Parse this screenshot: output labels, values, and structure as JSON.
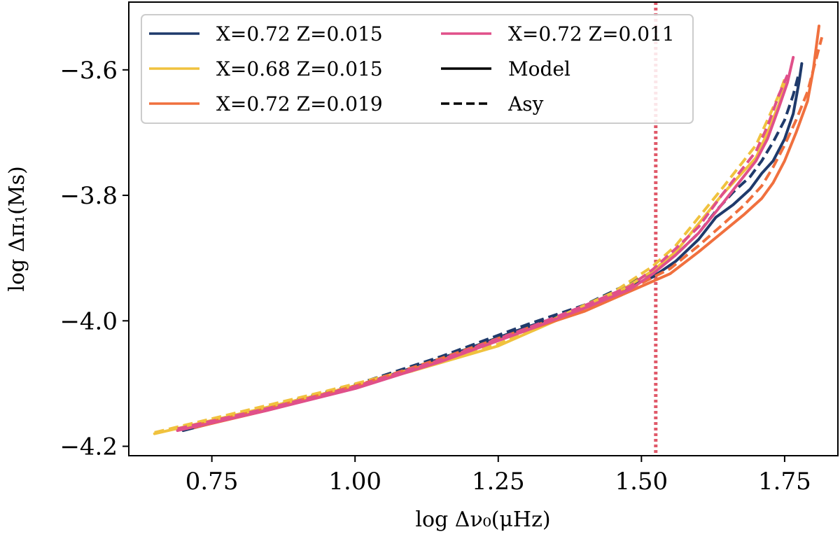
{
  "chart_data": {
    "type": "line",
    "xlabel": "log Δν₀(μHz)",
    "ylabel": "log Δπ₁(Ms)",
    "xlim": [
      0.605,
      1.843
    ],
    "ylim": [
      -4.215,
      -3.492
    ],
    "xticks": [
      0.75,
      1.0,
      1.25,
      1.5,
      1.75
    ],
    "xtick_labels": [
      "0.75",
      "1.00",
      "1.25",
      "1.50",
      "1.75"
    ],
    "yticks": [
      -4.2,
      -4.0,
      -3.8,
      -3.6
    ],
    "ytick_labels": [
      "−4.2",
      "−4.0",
      "−3.8",
      "−3.6"
    ],
    "grid": false,
    "legend_placement": "upper-left",
    "vline": {
      "x": 1.525,
      "color": "#e05a6a",
      "style": "dotted"
    },
    "series": [
      {
        "name": "X=0.72 Z=0.015",
        "color": "#1f3a6b",
        "model": [
          [
            0.7,
            -4.175
          ],
          [
            0.85,
            -4.14
          ],
          [
            1.0,
            -4.105
          ],
          [
            1.15,
            -4.06
          ],
          [
            1.3,
            -4.01
          ],
          [
            1.4,
            -3.98
          ],
          [
            1.48,
            -3.945
          ],
          [
            1.52,
            -3.93
          ],
          [
            1.56,
            -3.905
          ],
          [
            1.6,
            -3.87
          ],
          [
            1.63,
            -3.835
          ],
          [
            1.66,
            -3.815
          ],
          [
            1.69,
            -3.79
          ],
          [
            1.71,
            -3.765
          ],
          [
            1.73,
            -3.745
          ],
          [
            1.75,
            -3.71
          ],
          [
            1.765,
            -3.67
          ],
          [
            1.775,
            -3.62
          ],
          [
            1.78,
            -3.59
          ]
        ],
        "asy": [
          [
            0.7,
            -4.172
          ],
          [
            0.85,
            -4.137
          ],
          [
            1.0,
            -4.102
          ],
          [
            1.15,
            -4.057
          ],
          [
            1.3,
            -4.006
          ],
          [
            1.4,
            -3.975
          ],
          [
            1.48,
            -3.94
          ],
          [
            1.52,
            -3.922
          ],
          [
            1.56,
            -3.895
          ],
          [
            1.6,
            -3.86
          ],
          [
            1.63,
            -3.825
          ],
          [
            1.66,
            -3.795
          ],
          [
            1.69,
            -3.77
          ],
          [
            1.71,
            -3.745
          ],
          [
            1.73,
            -3.715
          ],
          [
            1.75,
            -3.68
          ],
          [
            1.765,
            -3.64
          ],
          [
            1.775,
            -3.605
          ]
        ]
      },
      {
        "name": "X=0.68 Z=0.015",
        "color": "#f0c23e",
        "model": [
          [
            0.65,
            -4.18
          ],
          [
            0.8,
            -4.148
          ],
          [
            0.95,
            -4.115
          ],
          [
            1.1,
            -4.08
          ],
          [
            1.25,
            -4.04
          ],
          [
            1.35,
            -4.0
          ],
          [
            1.45,
            -3.96
          ],
          [
            1.52,
            -3.92
          ],
          [
            1.56,
            -3.89
          ],
          [
            1.6,
            -3.845
          ],
          [
            1.64,
            -3.8
          ],
          [
            1.67,
            -3.77
          ],
          [
            1.7,
            -3.74
          ],
          [
            1.72,
            -3.7
          ],
          [
            1.74,
            -3.655
          ],
          [
            1.75,
            -3.62
          ]
        ],
        "asy": [
          [
            0.65,
            -4.178
          ],
          [
            0.8,
            -4.145
          ],
          [
            0.95,
            -4.112
          ],
          [
            1.1,
            -4.077
          ],
          [
            1.25,
            -4.037
          ],
          [
            1.35,
            -3.996
          ],
          [
            1.45,
            -3.955
          ],
          [
            1.52,
            -3.913
          ],
          [
            1.56,
            -3.88
          ],
          [
            1.6,
            -3.835
          ],
          [
            1.64,
            -3.79
          ],
          [
            1.67,
            -3.755
          ],
          [
            1.7,
            -3.72
          ],
          [
            1.72,
            -3.68
          ],
          [
            1.74,
            -3.64
          ],
          [
            1.75,
            -3.615
          ]
        ]
      },
      {
        "name": "X=0.72 Z=0.019",
        "color": "#f0703e",
        "model": [
          [
            0.72,
            -4.17
          ],
          [
            0.85,
            -4.142
          ],
          [
            1.0,
            -4.107
          ],
          [
            1.15,
            -4.063
          ],
          [
            1.3,
            -4.015
          ],
          [
            1.4,
            -3.985
          ],
          [
            1.5,
            -3.945
          ],
          [
            1.55,
            -3.925
          ],
          [
            1.6,
            -3.89
          ],
          [
            1.64,
            -3.86
          ],
          [
            1.68,
            -3.83
          ],
          [
            1.71,
            -3.805
          ],
          [
            1.73,
            -3.78
          ],
          [
            1.75,
            -3.745
          ],
          [
            1.77,
            -3.7
          ],
          [
            1.79,
            -3.65
          ],
          [
            1.8,
            -3.6
          ],
          [
            1.81,
            -3.53
          ]
        ],
        "asy": [
          [
            0.72,
            -4.167
          ],
          [
            0.85,
            -4.139
          ],
          [
            1.0,
            -4.104
          ],
          [
            1.15,
            -4.06
          ],
          [
            1.3,
            -4.012
          ],
          [
            1.4,
            -3.981
          ],
          [
            1.5,
            -3.94
          ],
          [
            1.55,
            -3.917
          ],
          [
            1.6,
            -3.88
          ],
          [
            1.64,
            -3.848
          ],
          [
            1.68,
            -3.815
          ],
          [
            1.71,
            -3.785
          ],
          [
            1.73,
            -3.755
          ],
          [
            1.75,
            -3.72
          ],
          [
            1.77,
            -3.68
          ],
          [
            1.79,
            -3.635
          ],
          [
            1.8,
            -3.6
          ],
          [
            1.815,
            -3.548
          ]
        ]
      },
      {
        "name": "X=0.72 Z=0.011",
        "color": "#e0508a",
        "model": [
          [
            0.69,
            -4.175
          ],
          [
            0.85,
            -4.142
          ],
          [
            1.0,
            -4.108
          ],
          [
            1.15,
            -4.065
          ],
          [
            1.3,
            -4.015
          ],
          [
            1.4,
            -3.98
          ],
          [
            1.48,
            -3.95
          ],
          [
            1.52,
            -3.925
          ],
          [
            1.56,
            -3.895
          ],
          [
            1.6,
            -3.86
          ],
          [
            1.64,
            -3.815
          ],
          [
            1.67,
            -3.78
          ],
          [
            1.7,
            -3.745
          ],
          [
            1.72,
            -3.71
          ],
          [
            1.74,
            -3.66
          ],
          [
            1.755,
            -3.62
          ],
          [
            1.765,
            -3.58
          ]
        ],
        "asy": [
          [
            0.69,
            -4.172
          ],
          [
            0.85,
            -4.139
          ],
          [
            1.0,
            -4.105
          ],
          [
            1.15,
            -4.062
          ],
          [
            1.3,
            -4.012
          ],
          [
            1.4,
            -3.976
          ],
          [
            1.48,
            -3.945
          ],
          [
            1.52,
            -3.918
          ],
          [
            1.56,
            -3.885
          ],
          [
            1.6,
            -3.85
          ],
          [
            1.64,
            -3.8
          ],
          [
            1.67,
            -3.765
          ],
          [
            1.7,
            -3.73
          ],
          [
            1.72,
            -3.69
          ],
          [
            1.74,
            -3.64
          ],
          [
            1.755,
            -3.608
          ]
        ]
      }
    ],
    "style_legend": [
      {
        "name": "Model",
        "dash": "solid",
        "color": "#000000"
      },
      {
        "name": "Asy",
        "dash": "dashed",
        "color": "#000000"
      }
    ]
  }
}
